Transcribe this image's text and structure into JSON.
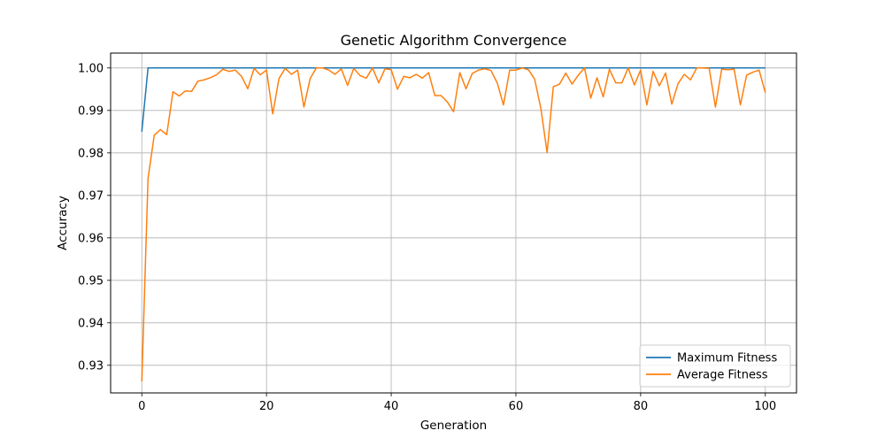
{
  "chart_data": {
    "type": "line",
    "title": "Genetic Algorithm Convergence",
    "xlabel": "Generation",
    "ylabel": "Accuracy",
    "xlim": [
      -5,
      105
    ],
    "ylim": [
      0.9235,
      1.0035
    ],
    "xticks": [
      0,
      20,
      40,
      60,
      80,
      100
    ],
    "xtick_labels": [
      "0",
      "20",
      "40",
      "60",
      "80",
      "100"
    ],
    "yticks": [
      0.93,
      0.94,
      0.95,
      0.96,
      0.97,
      0.98,
      0.99,
      1.0
    ],
    "ytick_labels": [
      "0.93",
      "0.94",
      "0.95",
      "0.96",
      "0.97",
      "0.98",
      "0.99",
      "1.00"
    ],
    "grid": true,
    "legend_position": "lower-right",
    "x": [
      0,
      1,
      2,
      3,
      4,
      5,
      6,
      7,
      8,
      9,
      10,
      11,
      12,
      13,
      14,
      15,
      16,
      17,
      18,
      19,
      20,
      21,
      22,
      23,
      24,
      25,
      26,
      27,
      28,
      29,
      30,
      31,
      32,
      33,
      34,
      35,
      36,
      37,
      38,
      39,
      40,
      41,
      42,
      43,
      44,
      45,
      46,
      47,
      48,
      49,
      50,
      51,
      52,
      53,
      54,
      55,
      56,
      57,
      58,
      59,
      60,
      61,
      62,
      63,
      64,
      65,
      66,
      67,
      68,
      69,
      70,
      71,
      72,
      73,
      74,
      75,
      76,
      77,
      78,
      79,
      80,
      81,
      82,
      83,
      84,
      85,
      86,
      87,
      88,
      89,
      90,
      91,
      92,
      93,
      94,
      95,
      96,
      97,
      98,
      99,
      100
    ],
    "series": [
      {
        "name": "Maximum Fitness",
        "color": "#1f77b4",
        "values": [
          0.985,
          1.0,
          1.0,
          1.0,
          1.0,
          1.0,
          1.0,
          1.0,
          1.0,
          1.0,
          1.0,
          1.0,
          1.0,
          1.0,
          1.0,
          1.0,
          1.0,
          1.0,
          1.0,
          1.0,
          1.0,
          1.0,
          1.0,
          1.0,
          1.0,
          1.0,
          1.0,
          1.0,
          1.0,
          1.0,
          1.0,
          1.0,
          1.0,
          1.0,
          1.0,
          1.0,
          1.0,
          1.0,
          1.0,
          1.0,
          1.0,
          1.0,
          1.0,
          1.0,
          1.0,
          1.0,
          1.0,
          1.0,
          1.0,
          1.0,
          1.0,
          1.0,
          1.0,
          1.0,
          1.0,
          1.0,
          1.0,
          1.0,
          1.0,
          1.0,
          1.0,
          1.0,
          1.0,
          1.0,
          1.0,
          1.0,
          1.0,
          1.0,
          1.0,
          1.0,
          1.0,
          1.0,
          1.0,
          1.0,
          1.0,
          1.0,
          1.0,
          1.0,
          1.0,
          1.0,
          1.0,
          1.0,
          1.0,
          1.0,
          1.0,
          1.0,
          1.0,
          1.0,
          1.0,
          1.0,
          1.0,
          1.0,
          1.0,
          1.0,
          1.0,
          1.0,
          1.0,
          1.0,
          1.0,
          1.0,
          1.0
        ]
      },
      {
        "name": "Average Fitness",
        "color": "#ff7f0e",
        "values": [
          0.9262,
          0.974,
          0.9842,
          0.9855,
          0.9843,
          0.9944,
          0.9934,
          0.9946,
          0.9945,
          0.9969,
          0.9972,
          0.9977,
          0.9984,
          0.9997,
          0.9992,
          0.9995,
          0.998,
          0.9951,
          0.9999,
          0.9984,
          0.9995,
          0.9892,
          0.9975,
          0.9999,
          0.9985,
          0.9995,
          0.9908,
          0.9975,
          1.0,
          1.0,
          0.9995,
          0.9985,
          0.9998,
          0.9959,
          0.9999,
          0.9982,
          0.9976,
          1.0,
          0.9965,
          0.9998,
          0.9996,
          0.995,
          0.998,
          0.9977,
          0.9985,
          0.9976,
          0.9989,
          0.9935,
          0.9935,
          0.992,
          0.9897,
          0.9989,
          0.9951,
          0.9987,
          0.9995,
          0.9998,
          0.9994,
          0.9965,
          0.9913,
          0.9995,
          0.9995,
          1.0,
          0.9996,
          0.9974,
          0.9905,
          0.9801,
          0.9956,
          0.9962,
          0.9988,
          0.9962,
          0.9983,
          1.0,
          0.9929,
          0.9977,
          0.9932,
          0.9997,
          0.9965,
          0.9965,
          1.0,
          0.996,
          0.9995,
          0.9913,
          0.9992,
          0.9958,
          0.9988,
          0.9915,
          0.9963,
          0.9985,
          0.9972,
          1.0,
          1.0,
          0.9999,
          0.9908,
          0.9997,
          0.9996,
          0.9997,
          0.9913,
          0.9983,
          0.999,
          0.9995,
          0.9942
        ]
      }
    ]
  }
}
